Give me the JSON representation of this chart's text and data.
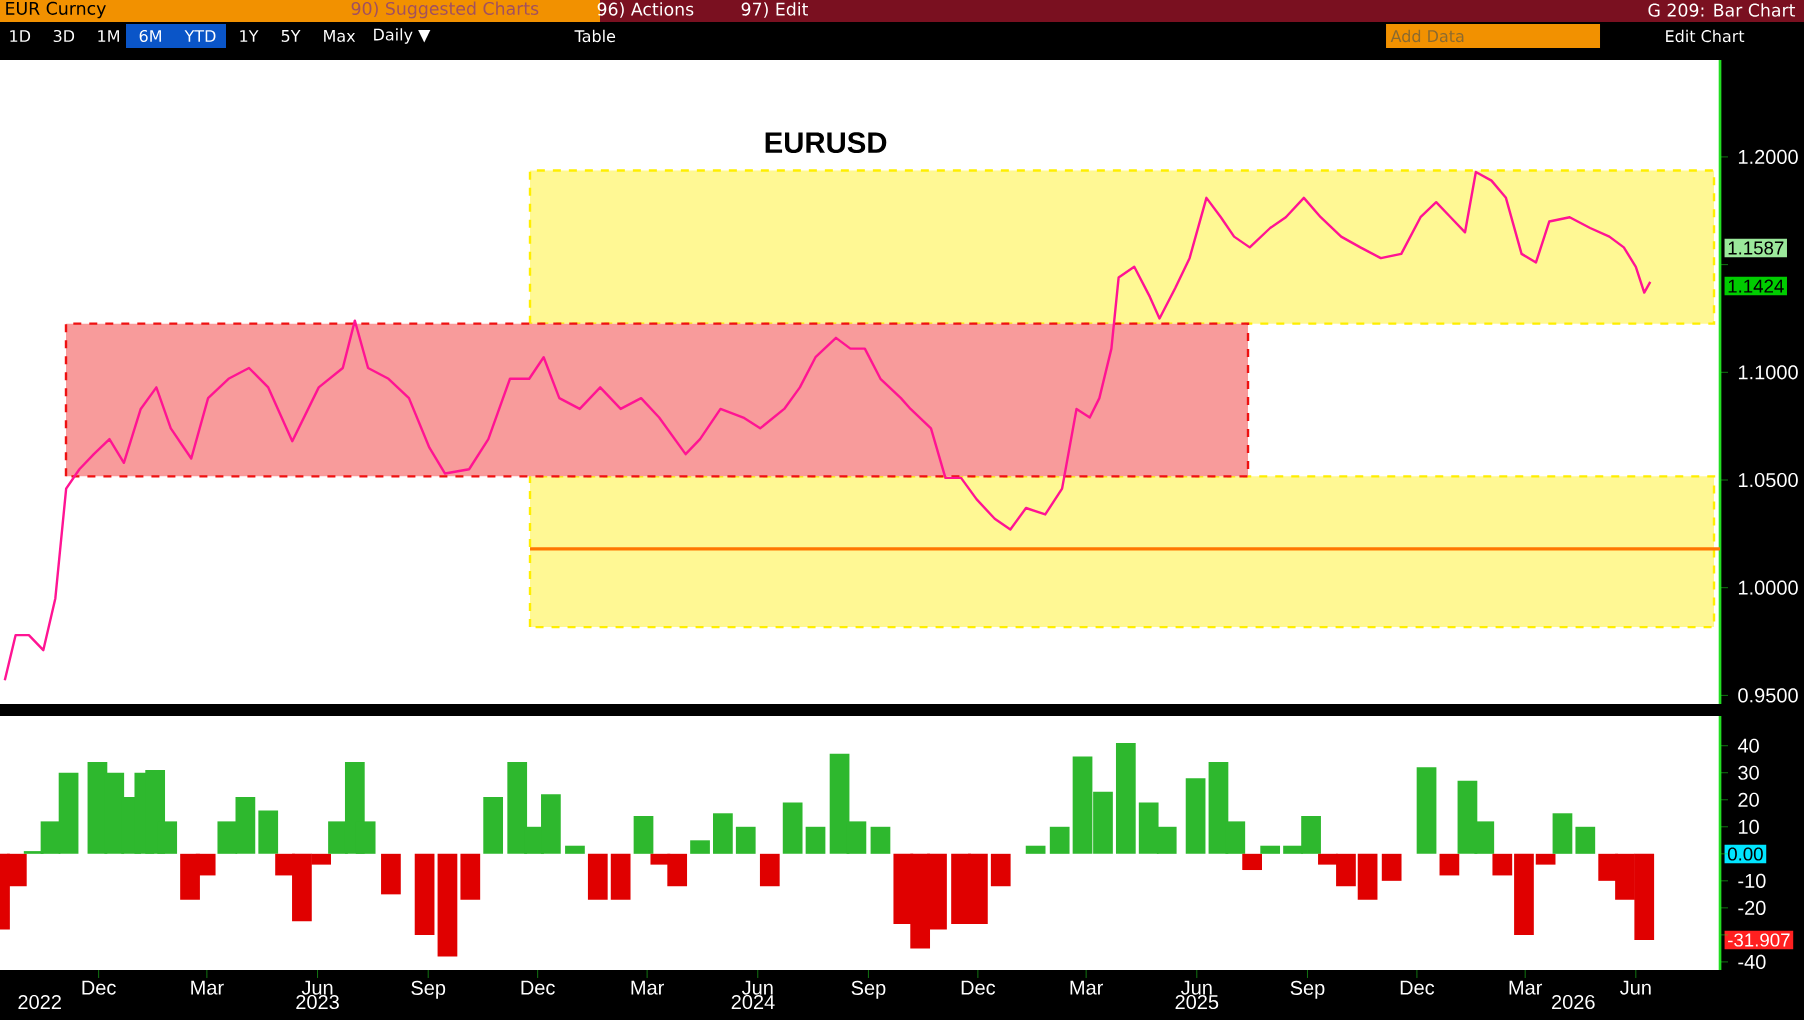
{
  "chart_data": [
    {
      "type": "line",
      "title": "EURUSD",
      "x": [
        "2022-09-14",
        "2022-09-23",
        "2022-10-04",
        "2022-10-16",
        "2022-10-26",
        "2022-11-04",
        "2022-11-15",
        "2022-11-27",
        "2022-12-10",
        "2022-12-22",
        "2023-01-05",
        "2023-01-18",
        "2023-01-30",
        "2023-02-16",
        "2023-03-02",
        "2023-03-19",
        "2023-04-05",
        "2023-04-21",
        "2023-05-11",
        "2023-06-02",
        "2023-06-22",
        "2023-07-02",
        "2023-07-13",
        "2023-07-30",
        "2023-08-16",
        "2023-09-02",
        "2023-09-15",
        "2023-10-05",
        "2023-10-21",
        "2023-11-08",
        "2023-11-24",
        "2023-12-06",
        "2023-12-19",
        "2024-01-05",
        "2024-01-22",
        "2024-02-08",
        "2024-02-25",
        "2024-03-11",
        "2024-04-02",
        "2024-04-14",
        "2024-05-01",
        "2024-05-20",
        "2024-06-03",
        "2024-06-23",
        "2024-07-06",
        "2024-07-19",
        "2024-08-05",
        "2024-08-17",
        "2024-08-29",
        "2024-09-11",
        "2024-09-28",
        "2024-10-06",
        "2024-10-23",
        "2024-11-04",
        "2024-11-17",
        "2024-11-30",
        "2024-12-15",
        "2024-12-28",
        "2025-01-10",
        "2025-01-26",
        "2025-02-09",
        "2025-02-21",
        "2025-03-04",
        "2025-03-12",
        "2025-03-22",
        "2025-03-28",
        "2025-04-10",
        "2025-04-23",
        "2025-05-01",
        "2025-05-14",
        "2025-05-26",
        "2025-06-09",
        "2025-06-21",
        "2025-07-02",
        "2025-07-15",
        "2025-08-01",
        "2025-08-14",
        "2025-08-29",
        "2025-09-12",
        "2025-09-29",
        "2025-10-15",
        "2025-11-01",
        "2025-11-18",
        "2025-12-04",
        "2025-12-17",
        "2025-12-29",
        "2026-01-10",
        "2026-01-19",
        "2026-02-01",
        "2026-02-13",
        "2026-02-26",
        "2026-03-10",
        "2026-03-21",
        "2026-04-07",
        "2026-04-24",
        "2026-05-10",
        "2026-05-22",
        "2026-06-01",
        "2026-06-08",
        "2026-06-13"
      ],
      "series": [
        {
          "color": "#ff1493",
          "values": [
            0.957,
            0.978,
            0.978,
            0.971,
            0.995,
            1.046,
            1.055,
            1.062,
            1.069,
            1.058,
            1.083,
            1.093,
            1.074,
            1.06,
            1.088,
            1.097,
            1.102,
            1.093,
            1.068,
            1.093,
            1.102,
            1.124,
            1.102,
            1.097,
            1.088,
            1.065,
            1.053,
            1.055,
            1.069,
            1.097,
            1.097,
            1.107,
            1.088,
            1.083,
            1.093,
            1.083,
            1.088,
            1.079,
            1.062,
            1.069,
            1.083,
            1.079,
            1.074,
            1.083,
            1.093,
            1.107,
            1.116,
            1.111,
            1.111,
            1.097,
            1.088,
            1.083,
            1.074,
            1.051,
            1.051,
            1.041,
            1.032,
            1.027,
            1.037,
            1.034,
            1.046,
            1.083,
            1.079,
            1.088,
            1.111,
            1.144,
            1.149,
            1.135,
            1.125,
            1.139,
            1.153,
            1.181,
            1.172,
            1.163,
            1.158,
            1.167,
            1.172,
            1.181,
            1.172,
            1.163,
            1.158,
            1.153,
            1.155,
            1.172,
            1.179,
            1.172,
            1.165,
            1.193,
            1.189,
            1.181,
            1.155,
            1.151,
            1.17,
            1.172,
            1.167,
            1.163,
            1.158,
            1.149,
            1.137,
            1.142
          ]
        }
      ],
      "xlim": [
        "2022-09-10",
        "2026-08-10"
      ],
      "ylim": [
        0.946,
        1.245
      ],
      "yticks": [
        {
          "value": 0.95,
          "label": "0.9500"
        },
        {
          "value": 1.0,
          "label": "1.0000"
        },
        {
          "value": 1.05,
          "label": "1.0500"
        },
        {
          "value": 1.1,
          "label": "1.1000"
        },
        {
          "value": 1.15,
          "label": null
        },
        {
          "value": 1.2,
          "label": "1.2000"
        }
      ],
      "tick_labels": "y",
      "bands": [
        {
          "axis": "y",
          "from": 1.1226,
          "to": 1.1937,
          "color": "#ffee00"
        },
        {
          "axis": "y",
          "from": 0.9817,
          "to": 1.0517,
          "color": "#ffee00"
        },
        {
          "axis": "y",
          "from": 1.0517,
          "to": 1.1226,
          "color": "#ee1111"
        }
      ],
      "ref_lines": [
        {
          "axis": "y",
          "value": 1.018,
          "color": "#ff7700"
        }
      ],
      "annotations": [
        "EUR Curncy",
        "90) Suggested Charts",
        "96) Actions",
        "97) Edit",
        "G 209: Bar Chart",
        "1D",
        "3D",
        "1M",
        "6M",
        "YTD",
        "1Y",
        "5Y",
        "Max",
        "Daily ▼",
        "Table",
        "Add Data",
        "Edit Chart",
        "1.1587",
        "1.1424"
      ]
    },
    {
      "type": "bar",
      "x": [
        "2022-09-10",
        "2022-09-24",
        "2022-10-08",
        "2022-10-22",
        "2022-11-06",
        "2022-11-30",
        "2022-12-14",
        "2022-12-28",
        "2023-01-08",
        "2023-01-17",
        "2023-01-27",
        "2023-02-15",
        "2023-02-28",
        "2023-03-18",
        "2023-04-02",
        "2023-04-21",
        "2023-05-05",
        "2023-05-19",
        "2023-06-04",
        "2023-06-18",
        "2023-07-02",
        "2023-07-11",
        "2023-08-01",
        "2023-08-29",
        "2023-09-17",
        "2023-10-06",
        "2023-10-25",
        "2023-11-14",
        "2023-11-28",
        "2023-12-12",
        "2024-01-01",
        "2024-01-20",
        "2024-02-08",
        "2024-02-27",
        "2024-03-12",
        "2024-03-26",
        "2024-04-14",
        "2024-05-03",
        "2024-05-22",
        "2024-06-11",
        "2024-06-30",
        "2024-07-19",
        "2024-08-08",
        "2024-08-22",
        "2024-09-11",
        "2024-09-30",
        "2024-10-14",
        "2024-10-28",
        "2024-11-17",
        "2024-12-01",
        "2024-12-20",
        "2025-01-18",
        "2025-02-07",
        "2025-02-26",
        "2025-03-15",
        "2025-04-03",
        "2025-04-22",
        "2025-05-07",
        "2025-05-31",
        "2025-06-19",
        "2025-07-03",
        "2025-07-17",
        "2025-08-01",
        "2025-08-20",
        "2025-09-04",
        "2025-09-18",
        "2025-10-03",
        "2025-10-21",
        "2025-11-10",
        "2025-12-09",
        "2025-12-28",
        "2026-01-12",
        "2026-01-26",
        "2026-02-10",
        "2026-02-28",
        "2026-03-18",
        "2026-04-01",
        "2026-04-20",
        "2026-05-09",
        "2026-05-23",
        "2026-06-08"
      ],
      "series": [
        {
          "colors": [
            "#e00000",
            "#e00000",
            "#2eb82e",
            "#2eb82e",
            "#2eb82e",
            "#2eb82e",
            "#2eb82e",
            "#2eb82e",
            "#2eb82e",
            "#2eb82e",
            "#2eb82e",
            "#e00000",
            "#e00000",
            "#2eb82e",
            "#2eb82e",
            "#2eb82e",
            "#e00000",
            "#e00000",
            "#e00000",
            "#2eb82e",
            "#2eb82e",
            "#2eb82e",
            "#e00000",
            "#e00000",
            "#e00000",
            "#e00000",
            "#2eb82e",
            "#2eb82e",
            "#2eb82e",
            "#2eb82e",
            "#2eb82e",
            "#e00000",
            "#e00000",
            "#2eb82e",
            "#e00000",
            "#e00000",
            "#2eb82e",
            "#2eb82e",
            "#2eb82e",
            "#e00000",
            "#2eb82e",
            "#2eb82e",
            "#2eb82e",
            "#2eb82e",
            "#2eb82e",
            "#e00000",
            "#e00000",
            "#e00000",
            "#e00000",
            "#e00000",
            "#e00000",
            "#2eb82e",
            "#2eb82e",
            "#2eb82e",
            "#2eb82e",
            "#2eb82e",
            "#2eb82e",
            "#2eb82e",
            "#2eb82e",
            "#2eb82e",
            "#2eb82e",
            "#e00000",
            "#2eb82e",
            "#2eb82e",
            "#2eb82e",
            "#e00000",
            "#e00000",
            "#e00000",
            "#e00000",
            "#2eb82e",
            "#e00000",
            "#2eb82e",
            "#2eb82e",
            "#e00000",
            "#e00000",
            "#e00000",
            "#2eb82e",
            "#2eb82e",
            "#e00000",
            "#e00000",
            "#e00000"
          ],
          "values": [
            -28,
            -12,
            1,
            12,
            30,
            34,
            30,
            21,
            30,
            31,
            12,
            -17,
            -8,
            12,
            21,
            16,
            -8,
            -25,
            -4,
            12,
            34,
            12,
            -15,
            -30,
            -38,
            -17,
            21,
            34,
            10,
            22,
            3,
            -17,
            -17,
            14,
            -4,
            -12,
            5,
            15,
            10,
            -12,
            19,
            10,
            37,
            12,
            10,
            -26,
            -35,
            -28,
            -26,
            -26,
            -12,
            3,
            10,
            36,
            23,
            41,
            19,
            10,
            28,
            34,
            12,
            -6,
            3,
            3,
            14,
            -4,
            -12,
            -17,
            -10,
            32,
            -8,
            27,
            12,
            -8,
            -30,
            -4,
            15,
            10,
            -10,
            -17,
            -31.907
          ]
        }
      ],
      "xlim": [
        "2022-09-10",
        "2026-08-10"
      ],
      "ylim": [
        -43,
        51
      ],
      "yticks": [
        -40,
        {
          "value": -30,
          "label": null
        },
        -20,
        -10,
        {
          "value": 0,
          "label": null
        },
        10,
        20,
        30,
        40
      ],
      "xticks": [
        {
          "value": "2022-12-01",
          "label": "Dec"
        },
        {
          "value": "2023-03-01",
          "label": "Mar"
        },
        {
          "value": "2023-06-01",
          "label": "Jun"
        },
        {
          "value": "2023-09-01",
          "label": "Sep"
        },
        {
          "value": "2023-12-01",
          "label": "Dec"
        },
        {
          "value": "2024-03-01",
          "label": "Mar"
        },
        {
          "value": "2024-06-01",
          "label": "Jun"
        },
        {
          "value": "2024-09-01",
          "label": "Sep"
        },
        {
          "value": "2024-12-01",
          "label": "Dec"
        },
        {
          "value": "2025-03-01",
          "label": "Mar"
        },
        {
          "value": "2025-06-01",
          "label": "Jun"
        },
        {
          "value": "2025-09-01",
          "label": "Sep"
        },
        {
          "value": "2025-12-01",
          "label": "Dec"
        },
        {
          "value": "2026-03-01",
          "label": "Mar"
        },
        {
          "value": "2026-06-01",
          "label": "Jun"
        }
      ],
      "x2lim": [
        "2022-09-10",
        "2026-08-10"
      ],
      "x2ticks": [
        {
          "value": "2022-10-13",
          "label": "2022"
        },
        {
          "value": "2023-06-01",
          "label": "2023"
        },
        {
          "value": "2024-05-28",
          "label": "2024"
        },
        {
          "value": "2025-06-01",
          "label": "2025"
        },
        {
          "value": "2026-04-10",
          "label": "2026"
        }
      ],
      "annotations": [
        "0.00",
        "-31.907"
      ]
    }
  ]
}
